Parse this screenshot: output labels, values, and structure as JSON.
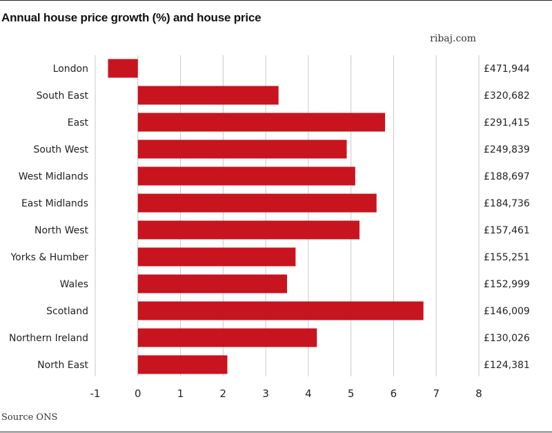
{
  "header": {
    "brand": "ribaj.com"
  },
  "footer": {
    "source": "Source ONS"
  },
  "chart_data": {
    "type": "bar",
    "orientation": "horizontal",
    "title": "Annual house price growth (%) and house price",
    "xlabel": "",
    "ylabel": "",
    "xlim": [
      -1,
      8
    ],
    "xticks": [
      -1,
      0,
      1,
      2,
      3,
      4,
      5,
      6,
      7,
      8
    ],
    "grid": true,
    "bar_color": "#c8141e",
    "categories": [
      "London",
      "South East",
      "East",
      "South West",
      "West Midlands",
      "East Midlands",
      "North West",
      "Yorks & Humber",
      "Wales",
      "Scotland",
      "Northern Ireland",
      "North East"
    ],
    "values": [
      -0.7,
      3.3,
      5.8,
      4.9,
      5.1,
      5.6,
      5.2,
      3.7,
      3.5,
      6.7,
      4.2,
      2.1
    ],
    "house_prices": [
      "£471,944",
      "£320,682",
      "£291,415",
      "£249,839",
      "£188,697",
      "£184,736",
      "£157,461",
      "£155,251",
      "£152,999",
      "£146,009",
      "£130,026",
      "£124,381"
    ]
  }
}
